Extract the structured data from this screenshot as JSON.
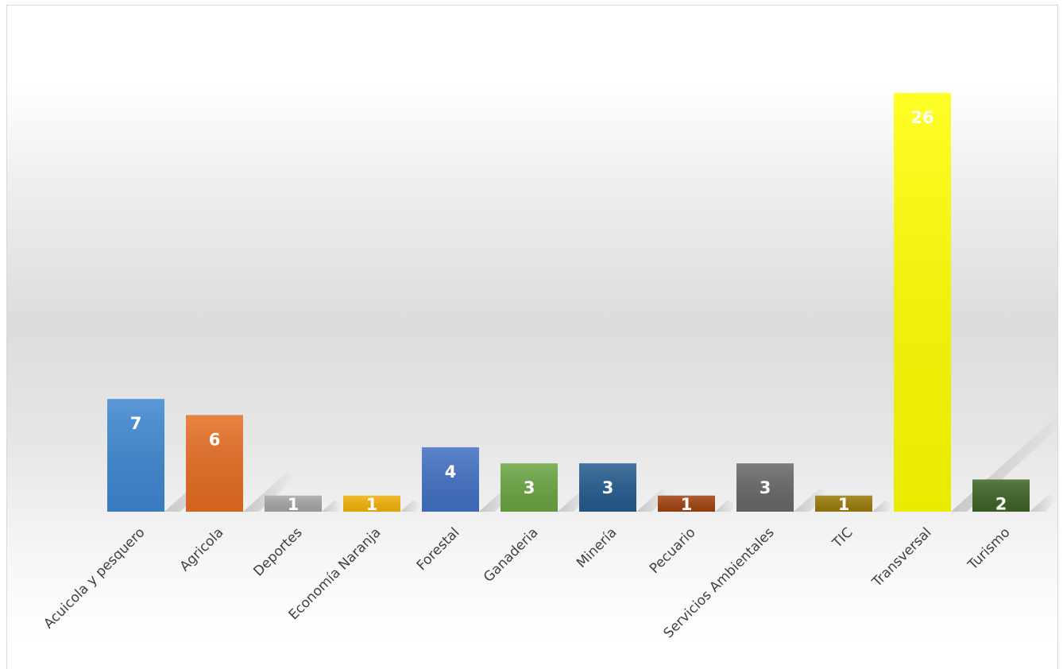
{
  "chart_data": {
    "type": "bar",
    "title": "",
    "xlabel": "",
    "ylabel": "",
    "ylim": [
      0,
      26
    ],
    "grid": false,
    "legend": "none",
    "categories": [
      "Acuicola y pesquero",
      "Agricola",
      "Deportes",
      "Economía Naranja",
      "Forestal",
      "Ganaderia",
      "Minería",
      "Pecuario",
      "Servicios Ambientales",
      "TIC",
      "Transversal",
      "Turismo"
    ],
    "values": [
      7,
      6,
      1,
      1,
      4,
      3,
      3,
      1,
      3,
      1,
      26,
      2
    ],
    "colors": [
      "#3d86d0",
      "#e56c22",
      "#a5a5a5",
      "#f2b10a",
      "#4170c3",
      "#6aa442",
      "#245b8d",
      "#a0420f",
      "#676767",
      "#9b7a0a",
      "#ffff00",
      "#3f6426"
    ]
  }
}
